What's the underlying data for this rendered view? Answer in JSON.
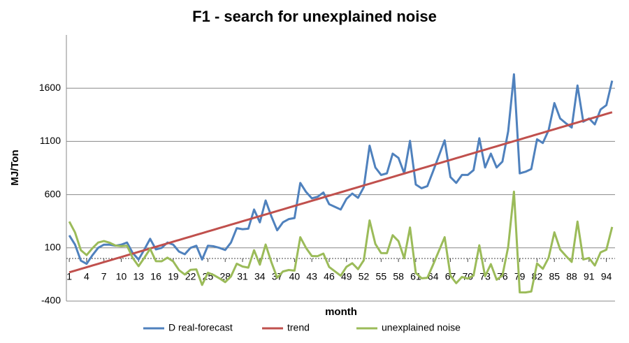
{
  "chart_data": {
    "type": "line",
    "title": "F1 - search for unexplained noise",
    "x_label": "month",
    "y_label": "MJ/Ton",
    "categories": [
      1,
      null,
      null,
      4,
      null,
      null,
      7,
      null,
      null,
      10,
      null,
      null,
      13,
      null,
      null,
      16,
      null,
      null,
      19,
      null,
      null,
      22,
      null,
      null,
      25,
      null,
      null,
      28,
      null,
      null,
      31,
      null,
      null,
      34,
      null,
      null,
      37,
      null,
      null,
      40,
      null,
      null,
      43,
      null,
      null,
      46,
      null,
      null,
      49,
      null,
      null,
      52,
      null,
      null,
      55,
      null,
      null,
      58,
      null,
      null,
      61,
      null,
      null,
      64,
      null,
      null,
      67,
      null,
      null,
      70,
      null,
      null,
      73,
      null,
      null,
      76,
      null,
      null,
      79,
      null,
      null,
      82,
      null,
      null,
      85,
      null,
      null,
      88,
      null,
      null,
      91,
      null,
      null,
      94,
      null
    ],
    "series": [
      {
        "name": "D real-forecast",
        "color": "#4f81bd",
        "values": [
          217,
          130,
          -20,
          -50,
          30,
          100,
          130,
          130,
          120,
          130,
          150,
          50,
          -10,
          85,
          185,
          85,
          100,
          150,
          130,
          65,
          40,
          100,
          120,
          -10,
          120,
          115,
          100,
          80,
          150,
          285,
          275,
          280,
          460,
          340,
          545,
          395,
          265,
          340,
          370,
          380,
          710,
          625,
          565,
          580,
          620,
          510,
          485,
          460,
          560,
          610,
          570,
          670,
          1060,
          855,
          785,
          800,
          985,
          945,
          800,
          1105,
          695,
          660,
          680,
          820,
          965,
          1110,
          765,
          710,
          785,
          785,
          830,
          1130,
          855,
          985,
          855,
          910,
          1195,
          1730,
          800,
          815,
          840,
          1120,
          1085,
          1205,
          1460,
          1315,
          1270,
          1230,
          1625,
          1285,
          1315,
          1260,
          1400,
          1440,
          1670
        ]
      },
      {
        "name": "trend",
        "color": "#c0504d",
        "values": [
          -130,
          -114,
          -98,
          -82,
          -66,
          -50,
          -34,
          -18,
          -2,
          14,
          30,
          46,
          62,
          78,
          94,
          110,
          126,
          142,
          158,
          174,
          190,
          206,
          222,
          238,
          254,
          270,
          286,
          302,
          318,
          334,
          350,
          366,
          382,
          398,
          414,
          430,
          446,
          462,
          478,
          494,
          510,
          526,
          542,
          558,
          574,
          590,
          606,
          622,
          638,
          654,
          670,
          686,
          702,
          718,
          734,
          750,
          766,
          782,
          798,
          814,
          830,
          846,
          862,
          878,
          894,
          910,
          926,
          942,
          958,
          974,
          990,
          1006,
          1022,
          1038,
          1054,
          1070,
          1086,
          1102,
          1118,
          1134,
          1150,
          1166,
          1182,
          1198,
          1214,
          1230,
          1246,
          1262,
          1278,
          1294,
          1310,
          1326,
          1342,
          1358,
          1374
        ]
      },
      {
        "name": "unexplained noise",
        "color": "#9bbb59",
        "values": [
          347,
          244,
          78,
          32,
          96,
          150,
          164,
          148,
          122,
          116,
          120,
          4,
          -72,
          7,
          91,
          -25,
          -26,
          8,
          -28,
          -109,
          -150,
          -106,
          -102,
          -248,
          -134,
          -155,
          -186,
          -222,
          -168,
          -49,
          -75,
          -86,
          78,
          -58,
          131,
          -35,
          -181,
          -122,
          -108,
          -114,
          200,
          99,
          23,
          22,
          46,
          -80,
          -121,
          -162,
          -78,
          -44,
          -100,
          -16,
          358,
          137,
          51,
          50,
          219,
          163,
          2,
          291,
          -135,
          -186,
          -182,
          -58,
          71,
          200,
          -161,
          -232,
          -173,
          -189,
          -160,
          124,
          -167,
          -53,
          -199,
          -160,
          109,
          628,
          -318,
          -319,
          -310,
          -46,
          -97,
          7,
          246,
          85,
          24,
          -32,
          347,
          -9,
          5,
          -66,
          58,
          82,
          296
        ]
      }
    ],
    "ylim": [
      -400,
      2100
    ],
    "yticks": [
      -400,
      100,
      600,
      1100,
      1600
    ],
    "grid": true,
    "legend": "bottom"
  }
}
